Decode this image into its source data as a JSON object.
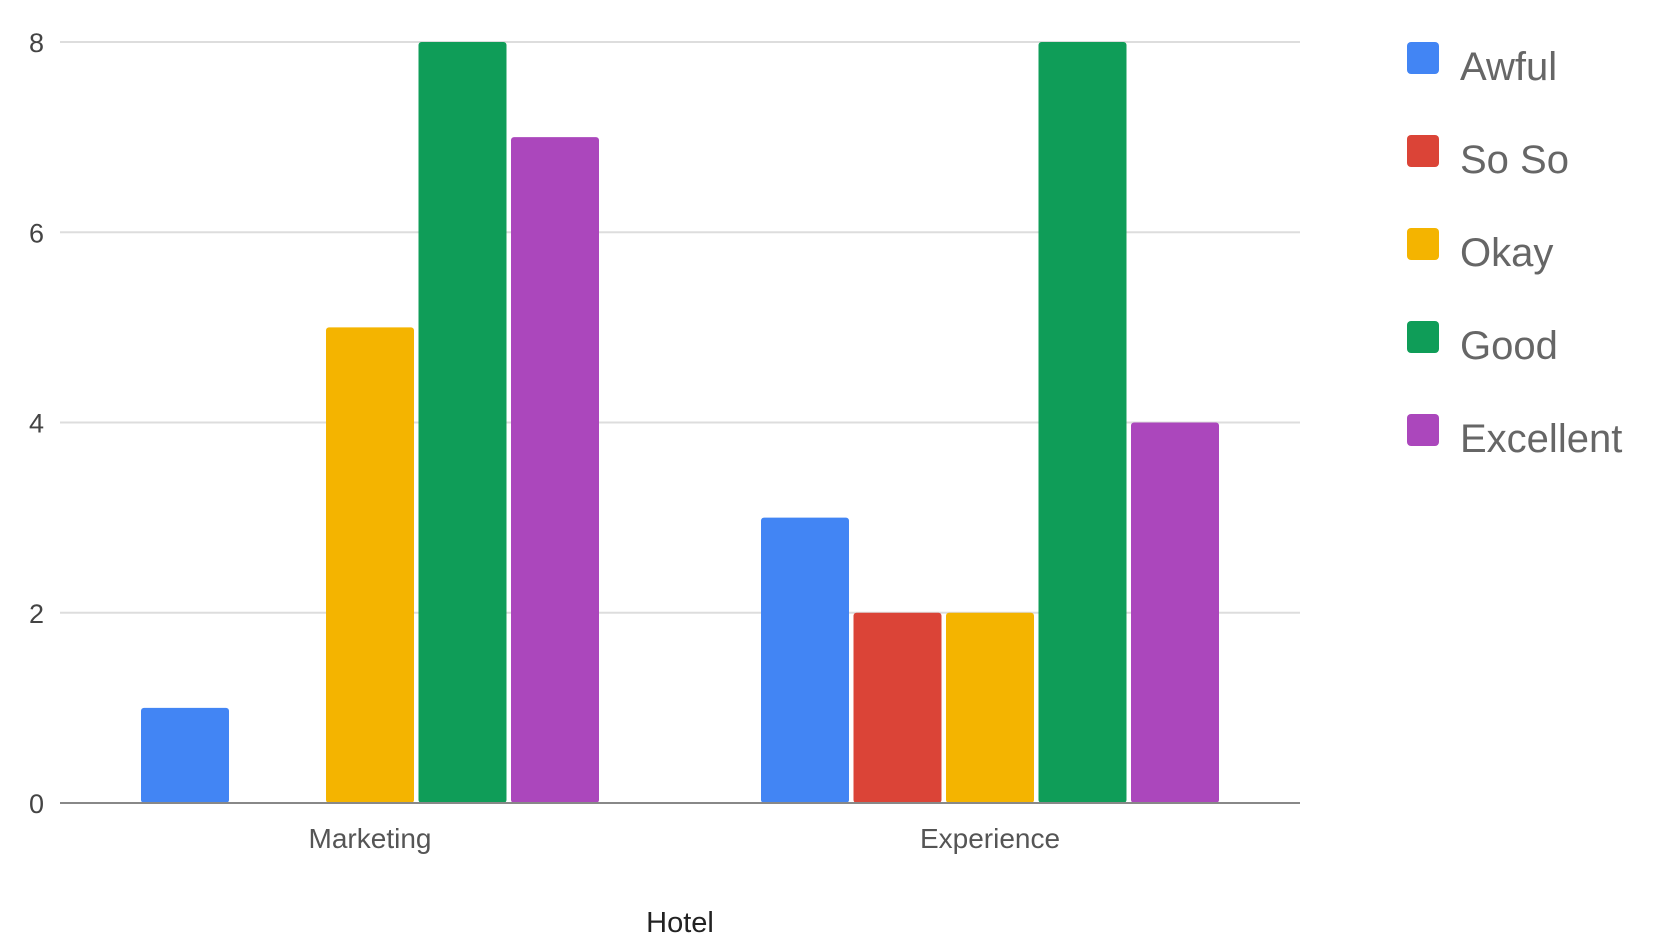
{
  "chart_data": {
    "type": "bar",
    "xlabel": "Hotel",
    "ylabel": "",
    "categories": [
      "Marketing",
      "Experience"
    ],
    "ylim": [
      0,
      8
    ],
    "yticks": [
      0,
      2,
      4,
      6,
      8
    ],
    "grid": true,
    "legend_position": "right",
    "series": [
      {
        "name": "Awful",
        "color": "#4285F4",
        "values": [
          1,
          3
        ]
      },
      {
        "name": "So So",
        "color": "#DB4437",
        "values": [
          0,
          2
        ]
      },
      {
        "name": "Okay",
        "color": "#F4B400",
        "values": [
          5,
          2
        ]
      },
      {
        "name": "Good",
        "color": "#0F9D58",
        "values": [
          8,
          8
        ]
      },
      {
        "name": "Excellent",
        "color": "#AB47BC",
        "values": [
          7,
          4
        ]
      }
    ]
  }
}
